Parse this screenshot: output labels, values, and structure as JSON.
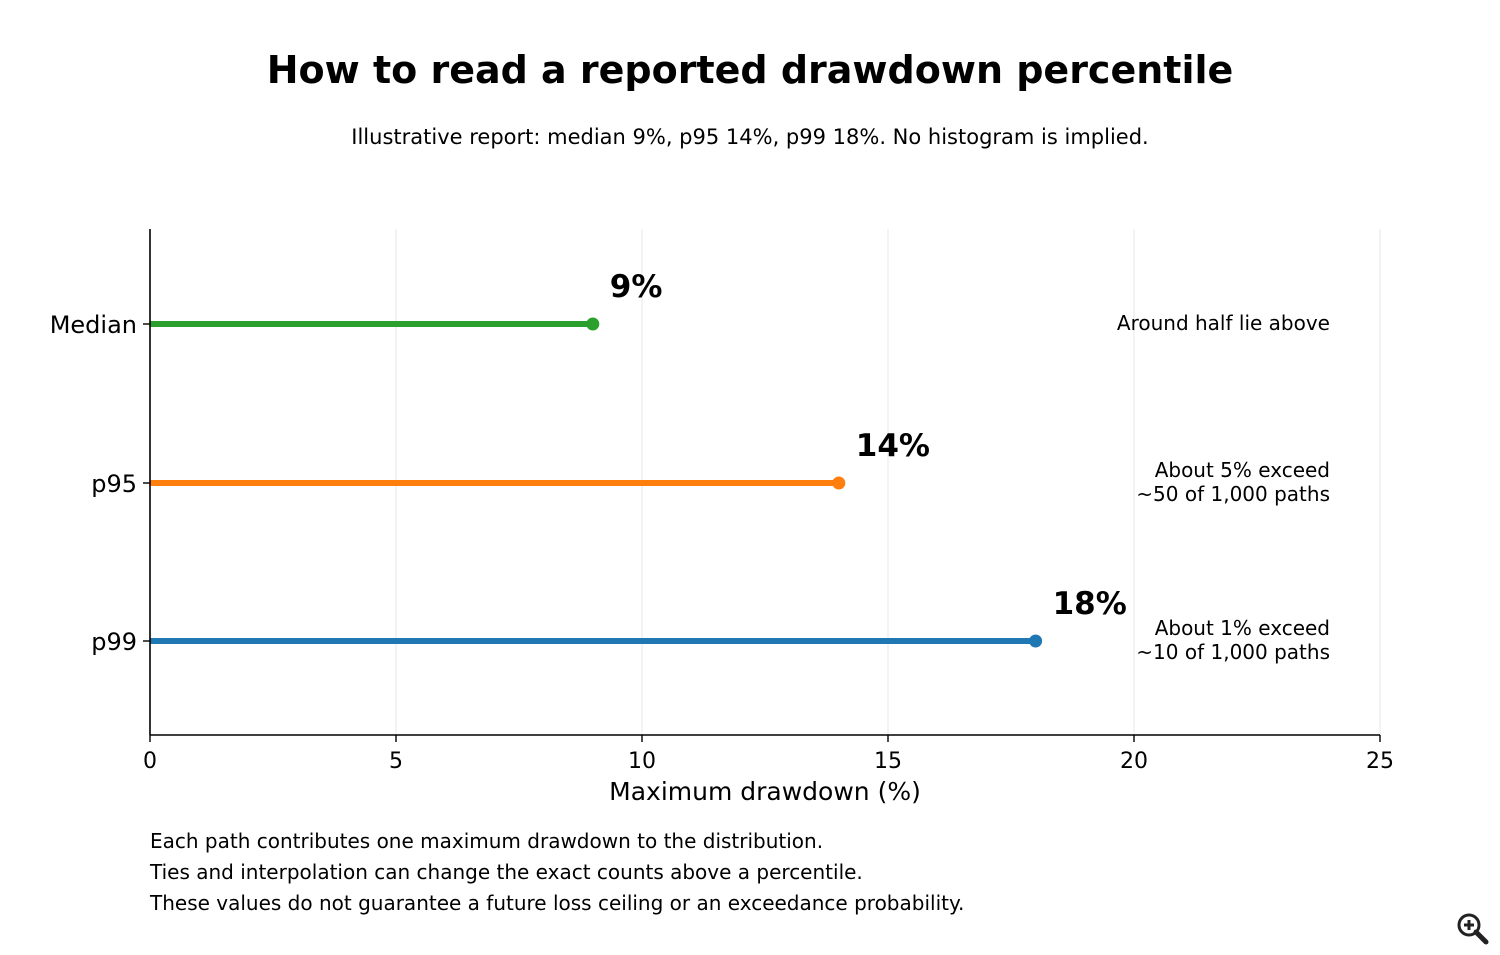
{
  "chart_data": {
    "type": "lollipop",
    "title": "How to read a reported drawdown percentile",
    "subtitle": "Illustrative report: median 9%, p95 14%, p99 18%. No histogram is implied.",
    "xlabel": "Maximum drawdown (%)",
    "ylabel": "",
    "xlim": [
      0,
      25
    ],
    "xticks": [
      0,
      5,
      10,
      15,
      20,
      25
    ],
    "grid": "vertical",
    "categories": [
      "Median",
      "p95",
      "p99"
    ],
    "values": [
      9,
      14,
      18
    ],
    "value_labels": [
      "9%",
      "14%",
      "18%"
    ],
    "colors": [
      "#2ca02c",
      "#ff7f0e",
      "#1f77b4"
    ],
    "annotations": [
      [
        "Around half lie above"
      ],
      [
        "About 5% exceed",
        "~50 of 1,000 paths"
      ],
      [
        "About 1% exceed",
        "~10 of 1,000 paths"
      ]
    ]
  },
  "notes": [
    "Each path contributes one maximum drawdown to the distribution.",
    "Ties and interpolation can change the exact counts above a percentile.",
    "These values do not guarantee a future loss ceiling or an exceedance probability."
  ],
  "toolbar": {
    "zoom_icon": "zoom-in-icon"
  }
}
